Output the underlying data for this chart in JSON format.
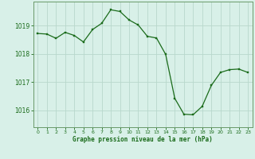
{
  "x": [
    0,
    1,
    2,
    3,
    4,
    5,
    6,
    7,
    8,
    9,
    10,
    11,
    12,
    13,
    14,
    15,
    16,
    17,
    18,
    19,
    20,
    21,
    22,
    23
  ],
  "y": [
    1018.72,
    1018.7,
    1018.55,
    1018.76,
    1018.65,
    1018.42,
    1018.86,
    1019.08,
    1019.56,
    1019.5,
    1019.2,
    1019.02,
    1018.62,
    1018.56,
    1017.98,
    1016.42,
    1015.86,
    1015.84,
    1016.14,
    1016.88,
    1017.34,
    1017.44,
    1017.46,
    1017.34
  ],
  "line_color": "#1a6b1a",
  "marker_color": "#1a6b1a",
  "bg_color": "#d8f0e8",
  "grid_color": "#b8d8cc",
  "border_color": "#6a9a6a",
  "xlabel": "Graphe pression niveau de la mer (hPa)",
  "xlabel_color": "#1a6b1a",
  "tick_color": "#1a6b1a",
  "yticks": [
    1016,
    1017,
    1018,
    1019
  ],
  "ylim": [
    1015.4,
    1019.85
  ],
  "xlim": [
    -0.5,
    23.5
  ]
}
